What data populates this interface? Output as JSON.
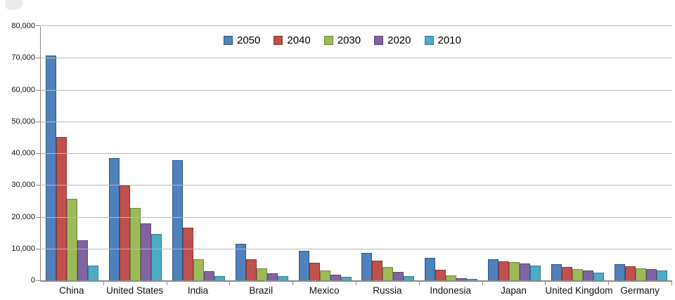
{
  "chart_data": {
    "type": "bar",
    "title": "",
    "xlabel": "",
    "ylabel": "",
    "categories": [
      "China",
      "United States",
      "India",
      "Brazil",
      "Mexico",
      "Russia",
      "Indonesia",
      "Japan",
      "United Kingdom",
      "Germany"
    ],
    "series": [
      {
        "name": "2050",
        "color": "#4F81BD",
        "border_color": "#2E5784",
        "values": [
          70700,
          38500,
          37700,
          11400,
          9300,
          8600,
          7000,
          6700,
          5100,
          5000
        ]
      },
      {
        "name": "2040",
        "color": "#C0504D",
        "border_color": "#8C3836",
        "values": [
          45000,
          29800,
          16500,
          6600,
          5500,
          6300,
          3300,
          6000,
          4300,
          4400
        ]
      },
      {
        "name": "2030",
        "color": "#9BBB59",
        "border_color": "#71893F",
        "values": [
          25600,
          22800,
          6700,
          3700,
          3100,
          4300,
          1500,
          5800,
          3600,
          3800
        ]
      },
      {
        "name": "2020",
        "color": "#8064A2",
        "border_color": "#5D4876",
        "values": [
          12600,
          18000,
          2800,
          2200,
          1700,
          2600,
          750,
          5200,
          3100,
          3500
        ]
      },
      {
        "name": "2010",
        "color": "#4BACC6",
        "border_color": "#347D92",
        "values": [
          4700,
          14500,
          1300,
          1300,
          1000,
          1400,
          400,
          4600,
          2500,
          3100
        ]
      }
    ],
    "ylim": [
      0,
      80000
    ],
    "ytick_step": 10000,
    "ytick_labels": [
      "0",
      "10,000",
      "20,000",
      "30,000",
      "40,000",
      "50,000",
      "60,000",
      "70,000",
      "80,000"
    ],
    "grid": true,
    "legend_position": "top-center"
  }
}
